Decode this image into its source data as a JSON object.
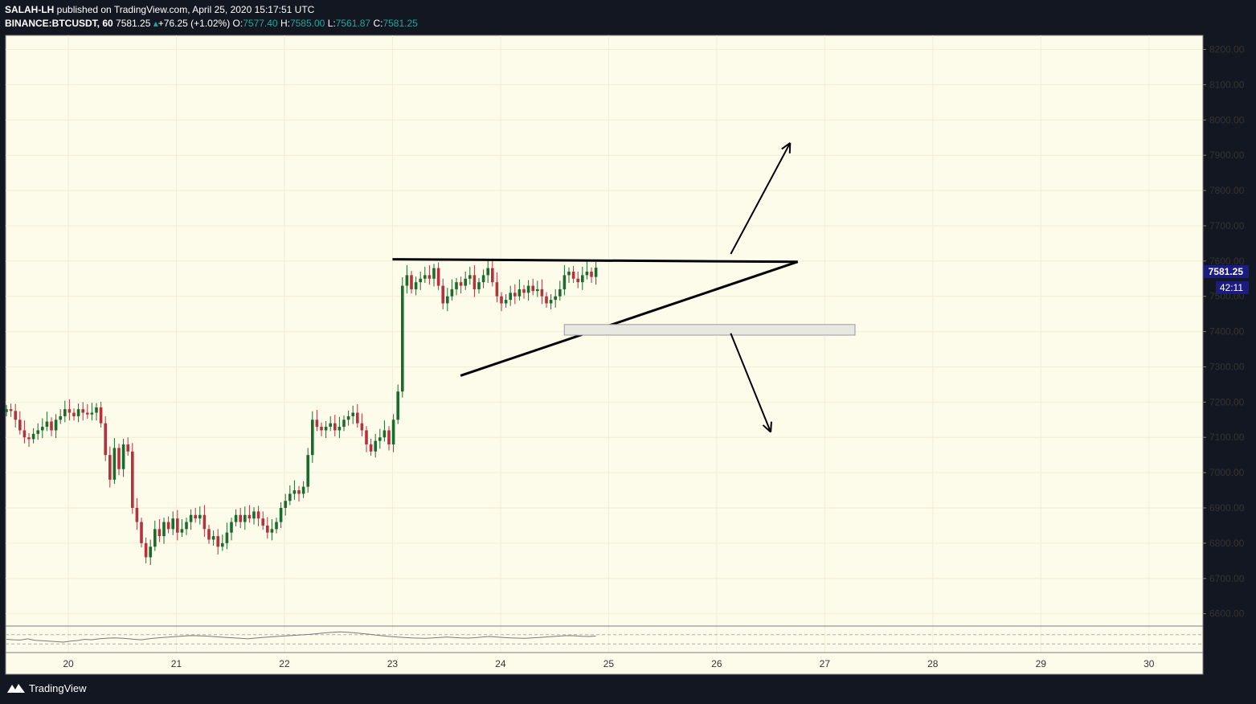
{
  "header": {
    "publisher": "SALAH-LH",
    "published_text": "published on TradingView.com, April 25, 2020 15:17:51 UTC",
    "symbol": "BINANCE:BTCUSDT, 60",
    "last": "7581.25",
    "change": "+76.25 (+1.02%)",
    "o_label": "O:",
    "o_value": "7577.40",
    "h_label": "H:",
    "h_value": "7585.00",
    "l_label": "L:",
    "l_value": "7561.87",
    "c_label": "C:",
    "c_value": "7581.25"
  },
  "price_scale": {
    "current_price": "7581.25",
    "countdown": "42:11"
  },
  "footer": {
    "brand": "TradingView"
  },
  "colors": {
    "background": "#fdfbea",
    "up": "#1b6b2f",
    "down": "#b5313e",
    "price_label_bg": "#1b1b80",
    "panel_bg": "#131722"
  },
  "chart_data": {
    "type": "candlestick",
    "timeframe": "60",
    "x_ticks": [
      "20",
      "21",
      "22",
      "23",
      "24",
      "25",
      "26",
      "27",
      "28",
      "29",
      "30"
    ],
    "y_ticks": [
      "6600.00",
      "6700.00",
      "6800.00",
      "6900.00",
      "7000.00",
      "7100.00",
      "7200.00",
      "7300.00",
      "7400.00",
      "7500.00",
      "7600.00",
      "7700.00",
      "7800.00",
      "7900.00",
      "8000.00",
      "8100.00",
      "8200.00"
    ],
    "ylim": [
      6565,
      8240
    ],
    "xlim": [
      19.42,
      30.5
    ],
    "grid": true,
    "closes": [
      7180,
      7175,
      7150,
      7120,
      7100,
      7095,
      7110,
      7120,
      7130,
      7145,
      7120,
      7150,
      7160,
      7180,
      7170,
      7160,
      7180,
      7170,
      7165,
      7170,
      7185,
      7140,
      7050,
      6980,
      7070,
      7010,
      7080,
      7060,
      6900,
      6860,
      6800,
      6760,
      6790,
      6840,
      6820,
      6860,
      6840,
      6870,
      6830,
      6840,
      6860,
      6880,
      6870,
      6880,
      6840,
      6810,
      6820,
      6790,
      6800,
      6830,
      6860,
      6880,
      6860,
      6880,
      6870,
      6890,
      6870,
      6850,
      6830,
      6840,
      6860,
      6900,
      6920,
      6940,
      6950,
      6940,
      6960,
      7050,
      7150,
      7130,
      7120,
      7130,
      7140,
      7120,
      7130,
      7150,
      7160,
      7170,
      7140,
      7120,
      7080,
      7060,
      7090,
      7100,
      7120,
      7080,
      7150,
      7230,
      7530,
      7560,
      7520,
      7540,
      7550,
      7560,
      7550,
      7580,
      7530,
      7480,
      7500,
      7520,
      7540,
      7530,
      7550,
      7560,
      7520,
      7540,
      7560,
      7580,
      7540,
      7500,
      7480,
      7490,
      7510,
      7500,
      7520,
      7510,
      7530,
      7515,
      7520,
      7500,
      7480,
      7490,
      7500,
      7520,
      7560,
      7570,
      7550,
      7540,
      7560,
      7570,
      7555,
      7581.25
    ],
    "triangle_resistance": {
      "x": [
        23.0,
        26.75
      ],
      "y": [
        7605,
        7598
      ]
    },
    "triangle_support": {
      "x": [
        23.63,
        26.75
      ],
      "y": [
        7275,
        7598
      ]
    },
    "zone": {
      "x": [
        24.59,
        27.28
      ],
      "y": [
        7390,
        7420
      ]
    },
    "arrow_up": {
      "x": [
        26.13,
        26.68
      ],
      "y": [
        7620,
        7935
      ]
    },
    "arrow_down": {
      "x": [
        26.13,
        26.5
      ],
      "y": [
        7395,
        7115
      ]
    },
    "rsi_values": [
      50,
      48,
      47,
      52,
      46,
      44,
      42,
      40,
      38,
      42,
      45,
      50,
      48,
      52,
      54,
      56,
      55,
      53,
      50,
      48,
      52,
      55,
      58,
      60,
      62,
      64,
      66,
      65,
      64,
      62,
      60,
      58,
      56,
      54,
      52,
      55,
      58,
      60,
      62,
      64,
      66,
      68,
      70,
      72,
      75,
      78,
      80,
      82,
      80,
      78,
      75,
      72,
      68,
      65,
      62,
      60,
      58,
      56,
      55,
      54,
      56,
      58,
      60,
      58,
      56,
      55,
      57,
      60,
      62,
      60,
      58,
      56,
      55,
      54,
      56,
      58,
      60,
      62,
      64,
      66,
      65,
      63,
      62,
      64
    ]
  }
}
